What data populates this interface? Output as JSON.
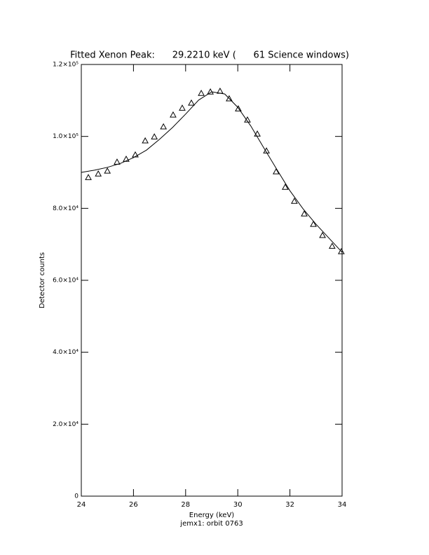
{
  "chart_data": {
    "type": "scatter",
    "title": "Fitted Xenon Peak:      29.2210 keV (      61 Science windows)",
    "x_label": "Energy (keV)",
    "caption": "jemx1: orbit 0763",
    "y_label": "Detector counts",
    "xlim": [
      24,
      34
    ],
    "xticks": [
      24,
      26,
      28,
      30,
      32,
      34
    ],
    "ylim": [
      0,
      120000
    ],
    "yticks": [
      0,
      {
        "value": 20000,
        "label": "2.0×10⁴"
      },
      {
        "value": 40000,
        "label": "4.0×10⁴"
      },
      {
        "value": 60000,
        "label": "6.0×10⁴"
      },
      {
        "value": 80000,
        "label": "8.0×10⁴"
      },
      {
        "value": 100000,
        "label": "1.0×10⁵"
      },
      {
        "value": 120000,
        "label": "1.2×10⁵"
      }
    ],
    "series": [
      {
        "color": "#000000",
        "marker": "triangle",
        "x": [
          24.27,
          24.65,
          25.0,
          25.37,
          25.72,
          26.07,
          26.45,
          26.8,
          27.15,
          27.52,
          27.87,
          28.22,
          28.6,
          28.95,
          29.32,
          29.67,
          30.02,
          30.37,
          30.75,
          31.1,
          31.47,
          31.82,
          32.17,
          32.55,
          32.9,
          33.25,
          33.62,
          33.97
        ],
        "values": [
          88600,
          89600,
          90400,
          92900,
          93700,
          94900,
          98800,
          99900,
          102700,
          106000,
          107900,
          109300,
          112000,
          112400,
          112600,
          110500,
          107700,
          104600,
          100700,
          96000,
          90200,
          85900,
          82000,
          78500,
          75600,
          72500,
          69500,
          68000
        ]
      },
      {
        "color": "#000000",
        "marker": "line",
        "x": [
          24,
          24.5,
          25,
          25.5,
          26,
          26.5,
          27,
          27.5,
          28,
          28.5,
          29,
          29.5,
          30,
          30.5,
          31,
          31.5,
          32,
          32.5,
          33,
          33.5,
          34
        ],
        "values": [
          90000,
          90600,
          91400,
          92500,
          94100,
          96200,
          99200,
          102500,
          106200,
          110100,
          112400,
          111800,
          108100,
          102900,
          96800,
          90800,
          84900,
          79900,
          75600,
          71700,
          67800
        ]
      }
    ]
  }
}
